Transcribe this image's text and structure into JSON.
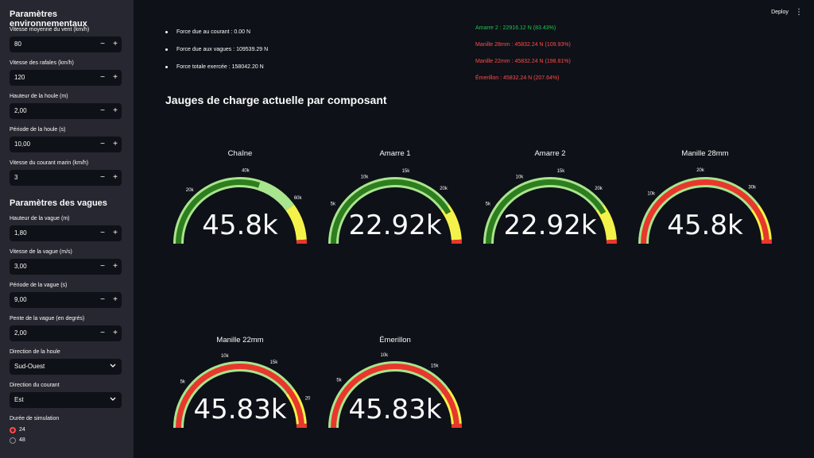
{
  "sidebar": {
    "env_title": "Paramètres environnementaux",
    "wind_speed": {
      "label": "Vitesse moyenne du vent (km/h)",
      "value": "80"
    },
    "gust_speed": {
      "label": "Vitesse des rafales (km/h)",
      "value": "120"
    },
    "swell_height": {
      "label": "Hauteur de la houle (m)",
      "value": "2,00"
    },
    "swell_period": {
      "label": "Période de la houle (s)",
      "value": "10,00"
    },
    "current_speed": {
      "label": "Vitesse du courant marin (km/h)",
      "value": "3"
    },
    "waves_title": "Paramètres des vagues",
    "wave_height": {
      "label": "Hauteur de la vague (m)",
      "value": "1,80"
    },
    "wave_speed": {
      "label": "Vitesse de la vague (m/s)",
      "value": "3,00"
    },
    "wave_period": {
      "label": "Période de la vague (s)",
      "value": "9,00"
    },
    "wave_slope": {
      "label": "Pente de la vague (en degrés)",
      "value": "2,00"
    },
    "swell_direction": {
      "label": "Direction de la houle",
      "value": "Sud-Ouest"
    },
    "current_direction": {
      "label": "Direction du courant",
      "value": "Est"
    },
    "duration": {
      "label": "Durée de simulation",
      "options": [
        "24",
        "48"
      ],
      "selected": "24"
    },
    "minus": "−",
    "plus": "+"
  },
  "header": {
    "deploy": "Deploy",
    "menu": "⋮"
  },
  "forces": [
    "Force due au courant : 0.00 N",
    "Force due aux vagues : 109539.29 N",
    "Force totale exercée : 158042.20 N"
  ],
  "status": [
    {
      "text": "Amarre 2 : 22916.12 N (83.43%)",
      "color": "#21c354"
    },
    {
      "text": "Manille 28mm : 45832.24 N (109.93%)",
      "color": "#ff4b4b"
    },
    {
      "text": "Manille 22mm : 45832.24 N (198.81%)",
      "color": "#ff4b4b"
    },
    {
      "text": "Émerillon : 45832.24 N (207.64%)",
      "color": "#ff4b4b"
    }
  ],
  "section_title": "Jauges de charge actuelle par composant",
  "colors": {
    "bar": "#2e7d1f",
    "red_bar": "#e8372c",
    "green": "#a8e58e",
    "yellow": "#f4f24a",
    "red": "#e8372c"
  },
  "gauges": [
    {
      "title": "Chaîne",
      "value": 45832.24,
      "display": "45.8k",
      "max": 76388,
      "ticks": [
        [
          20000,
          "20k"
        ],
        [
          40000,
          "40k"
        ],
        [
          60000,
          "60k"
        ]
      ],
      "bands": [
        [
          0,
          0.6,
          "green"
        ],
        [
          0.6,
          0.8,
          "lightgreen"
        ],
        [
          0.8,
          0.98,
          "yellow"
        ],
        [
          0.98,
          1,
          "red"
        ]
      ]
    },
    {
      "title": "Amarre 1",
      "value": 22916.12,
      "display": "22.92k",
      "max": 27470,
      "ticks": [
        [
          5000,
          "5k"
        ],
        [
          10000,
          "10k"
        ],
        [
          15000,
          "15k"
        ],
        [
          20000,
          "20k"
        ]
      ],
      "bands": [
        [
          0,
          0.8,
          "green"
        ],
        [
          0.8,
          0.98,
          "yellow"
        ],
        [
          0.98,
          1,
          "red"
        ]
      ]
    },
    {
      "title": "Amarre 2",
      "value": 22916.12,
      "display": "22.92k",
      "max": 27470,
      "ticks": [
        [
          5000,
          "5k"
        ],
        [
          10000,
          "10k"
        ],
        [
          15000,
          "15k"
        ],
        [
          20000,
          "20k"
        ]
      ],
      "bands": [
        [
          0,
          0.8,
          "green"
        ],
        [
          0.8,
          0.98,
          "yellow"
        ],
        [
          0.98,
          1,
          "red"
        ]
      ]
    },
    {
      "title": "Manille 28mm",
      "value": 45832.24,
      "display": "45.8k",
      "max": 41692,
      "ticks": [
        [
          10000,
          "10k"
        ],
        [
          20000,
          "20k"
        ],
        [
          30000,
          "30k"
        ]
      ],
      "bands": [
        [
          0,
          0.8,
          "green"
        ],
        [
          0.8,
          0.98,
          "yellow"
        ],
        [
          0.98,
          1,
          "red"
        ]
      ]
    },
    {
      "title": "Manille 22mm",
      "value": 45832.24,
      "display": "45.83k",
      "max": 23053,
      "ticks": [
        [
          5000,
          "5k"
        ],
        [
          10000,
          "10k"
        ],
        [
          15000,
          "15k"
        ],
        [
          20000,
          "20"
        ]
      ],
      "bands": [
        [
          0,
          0.8,
          "green"
        ],
        [
          0.8,
          0.98,
          "yellow"
        ],
        [
          0.98,
          1,
          "red"
        ]
      ]
    },
    {
      "title": "Émerillon",
      "value": 45832.24,
      "display": "45.83k",
      "max": 22073,
      "ticks": [
        [
          5000,
          "5k"
        ],
        [
          10000,
          "10k"
        ],
        [
          15000,
          "15k"
        ]
      ],
      "bands": [
        [
          0,
          0.8,
          "green"
        ],
        [
          0.8,
          0.98,
          "yellow"
        ],
        [
          0.98,
          1,
          "red"
        ]
      ]
    }
  ]
}
